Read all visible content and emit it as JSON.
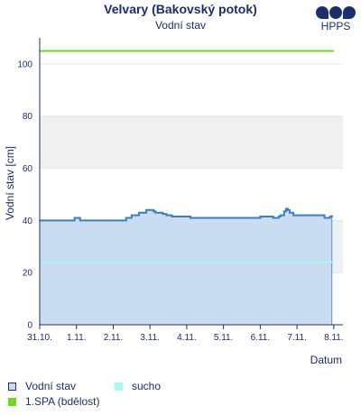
{
  "header": {
    "title": "Velvary (Bakovský potok)",
    "subtitle": "Vodní stav",
    "logo_text": "HPPS"
  },
  "colors": {
    "area_fill": "#c9dcf1",
    "line": "#3b7fbf",
    "spa": "#66dd22",
    "sucho": "#a8f7f7",
    "band": "#f0f0f0",
    "axis": "#1a2f6b"
  },
  "chart_data": {
    "type": "area",
    "title": "Velvary (Bakovský potok)",
    "subtitle": "Vodní stav",
    "xlabel": "Datum",
    "ylabel": "Vodní stav [cm]",
    "ylim": [
      0,
      110
    ],
    "yticks": [
      0,
      20,
      40,
      60,
      80,
      100
    ],
    "x_tick_labels": [
      "31.10.",
      "1.11.",
      "2.11.",
      "3.11.",
      "4.11.",
      "5.11.",
      "6.11.",
      "7.11.",
      "8.11."
    ],
    "x_range_days": [
      0,
      8.25
    ],
    "series": [
      {
        "name": "Vodní stav",
        "x_days": [
          0.0,
          0.9,
          0.95,
          1.05,
          1.1,
          2.3,
          2.35,
          2.45,
          2.5,
          2.6,
          2.7,
          2.85,
          2.9,
          3.0,
          3.1,
          3.15,
          3.25,
          3.35,
          3.45,
          3.5,
          3.6,
          3.7,
          4.0,
          4.1,
          4.5,
          5.0,
          5.5,
          5.9,
          6.0,
          6.1,
          6.25,
          6.35,
          6.5,
          6.55,
          6.65,
          6.7,
          6.75,
          6.8,
          6.9,
          7.0,
          7.5,
          7.7,
          7.75,
          7.85,
          7.9,
          7.95
        ],
        "values": [
          40,
          40,
          41,
          41,
          40,
          40,
          41,
          41,
          42,
          42,
          43,
          43,
          44,
          44,
          43.5,
          43,
          43,
          42.5,
          42,
          42,
          41.5,
          41.5,
          41.5,
          41,
          41,
          41,
          41,
          41,
          41.5,
          41.5,
          41.5,
          41,
          41.5,
          42,
          43.5,
          44.5,
          44,
          43,
          42,
          42,
          42,
          42,
          41,
          41,
          41.5,
          42
        ]
      },
      {
        "name": "sucho",
        "constant": 24
      },
      {
        "name": "1.SPA (bdělost)",
        "constant": 105
      }
    ],
    "bands": [
      [
        20,
        40
      ],
      [
        60,
        80
      ]
    ],
    "grid": true,
    "legend_position": "bottom-left"
  },
  "legend": [
    {
      "key": "vodni_stav",
      "label": "Vodní stav"
    },
    {
      "key": "sucho",
      "label": "sucho"
    },
    {
      "key": "spa",
      "label": "1.SPA (bdělost)"
    }
  ]
}
